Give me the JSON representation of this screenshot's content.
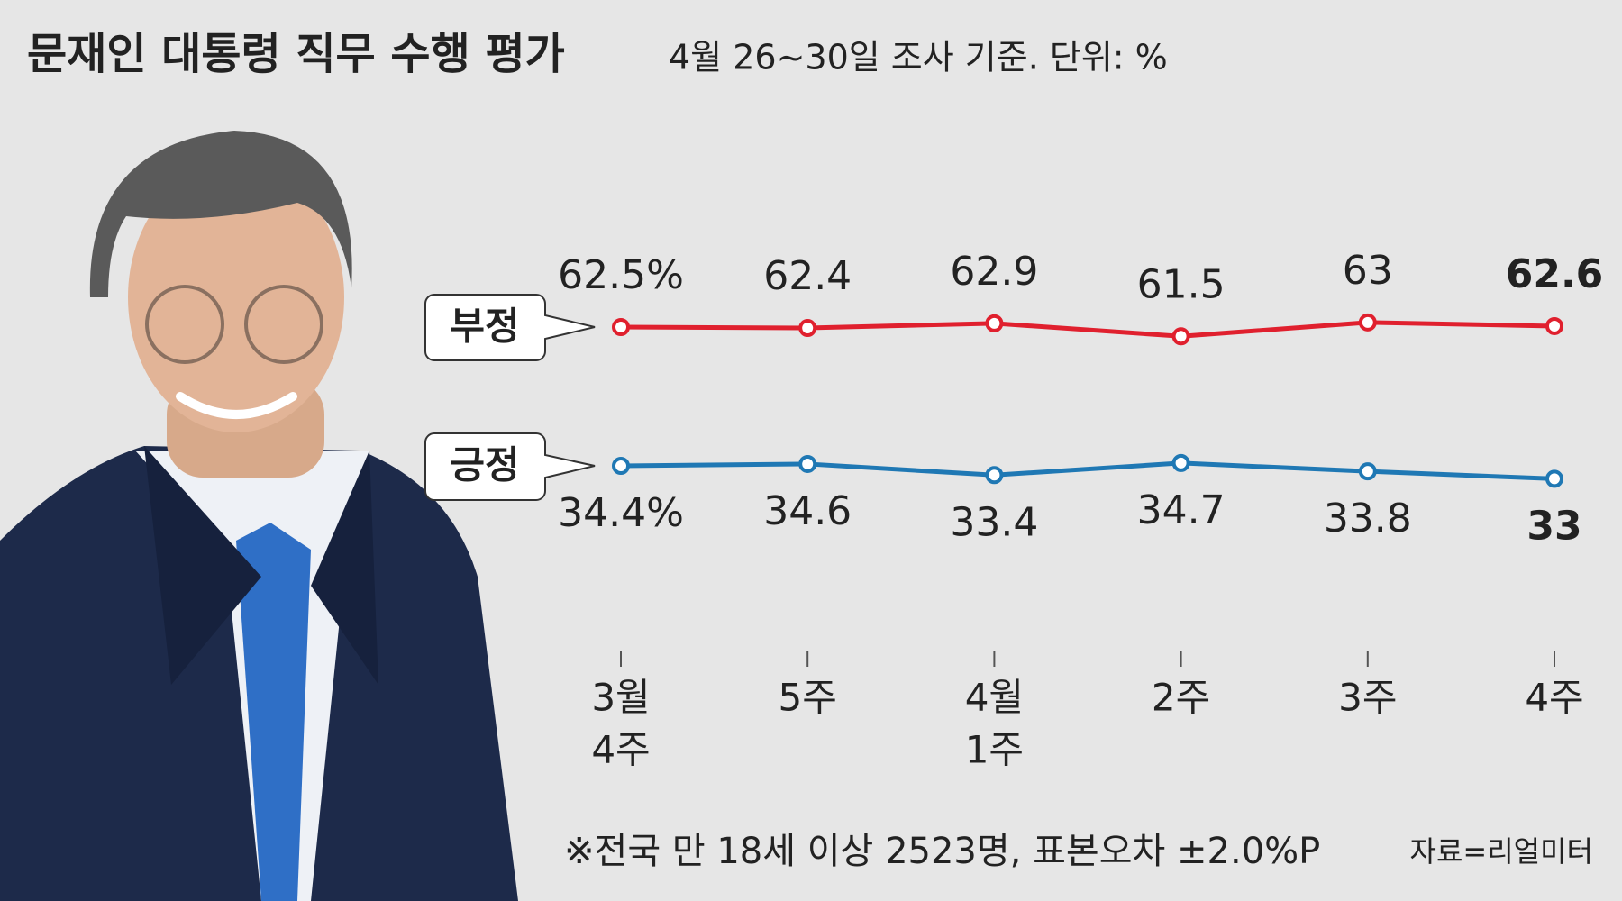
{
  "chart_data": {
    "type": "line",
    "title": "문재인 대통령 직무 수행 평가",
    "subtitle": "4월 26~30일 조사 기준. 단위: %",
    "categories": [
      [
        "3월",
        "4주"
      ],
      [
        "5주"
      ],
      [
        "4월",
        "1주"
      ],
      [
        "2주"
      ],
      [
        "3주"
      ],
      [
        "4주"
      ]
    ],
    "series": [
      {
        "name": "부정",
        "color": "#e0202e",
        "values": [
          62.5,
          62.4,
          62.9,
          61.5,
          63,
          62.6
        ],
        "value_labels": [
          "62.5%",
          "62.4",
          "62.9",
          "61.5",
          "63",
          "62.6"
        ]
      },
      {
        "name": "긍정",
        "color": "#1f78b4",
        "values": [
          34.4,
          34.6,
          33.4,
          34.7,
          33.8,
          33
        ],
        "value_labels": [
          "34.4%",
          "34.6",
          "33.4",
          "34.7",
          "33.8",
          "33"
        ]
      }
    ],
    "footnote": "※전국 만 18세 이상 2523명, 표본오차 ±2.0%P",
    "source": "자료=리얼미터"
  }
}
